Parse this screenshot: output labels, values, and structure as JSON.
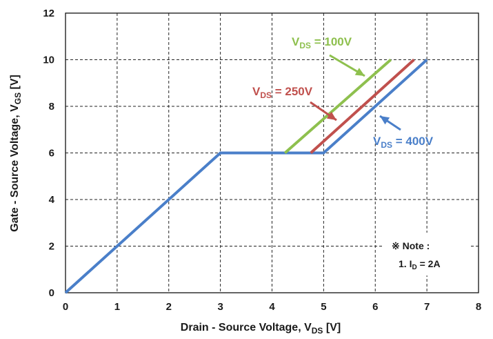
{
  "chart_data": {
    "type": "line",
    "xlabel": {
      "main": "Drain - Source Voltage, V",
      "sub": "DS",
      "unit": " [V]"
    },
    "ylabel": {
      "main": "Gate - Source Voltage, V",
      "sub": "GS",
      "unit": " [V]"
    },
    "xlim": [
      0,
      8
    ],
    "ylim": [
      0,
      12
    ],
    "x_ticks": [
      "0",
      "1",
      "2",
      "3",
      "4",
      "5",
      "6",
      "7",
      "8"
    ],
    "y_ticks": [
      "0",
      "2",
      "4",
      "6",
      "8",
      "10",
      "12"
    ],
    "grid": true,
    "series": [
      {
        "name": "VDS = 400V",
        "label_prefix": "V",
        "label_sub": "DS",
        "label_suffix": " = 400V",
        "color": "#4a7fc9",
        "points": [
          [
            0,
            0
          ],
          [
            3,
            6
          ],
          [
            5,
            6
          ],
          [
            7,
            10
          ]
        ]
      },
      {
        "name": "VDS = 250V",
        "label_prefix": "V",
        "label_sub": "DS",
        "label_suffix": " = 250V",
        "color": "#c0504d",
        "points": [
          [
            4.75,
            6
          ],
          [
            6.75,
            10
          ]
        ]
      },
      {
        "name": "VDS = 100V",
        "label_prefix": "V",
        "label_sub": "DS",
        "label_suffix": " = 100V",
        "color": "#8ec04e",
        "points": [
          [
            4.25,
            6
          ],
          [
            6.3,
            10
          ]
        ]
      }
    ],
    "note": {
      "line1": "※ Note :",
      "line2_prefix": "1. I",
      "line2_sub": "D",
      "line2_suffix": " = 2A"
    }
  }
}
